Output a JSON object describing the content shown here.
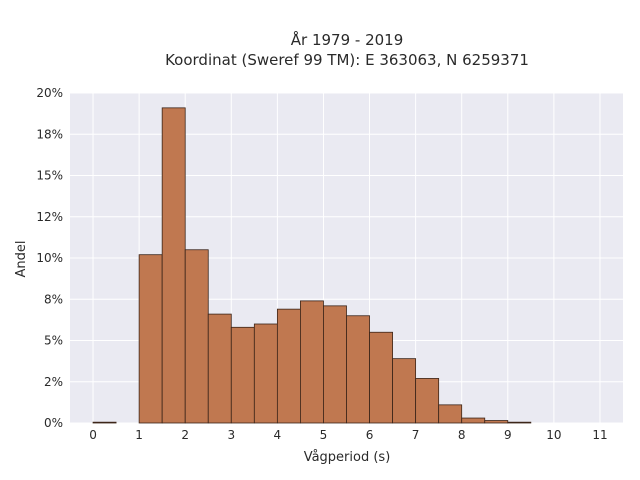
{
  "chart_data": {
    "type": "bar",
    "title": "År 1979 - 2019",
    "subtitle": "Koordinat (Sweref 99 TM): E 363063, N 6259371",
    "xlabel": "Vågperiod (s)",
    "ylabel": "Andel",
    "bin_width": 0.5,
    "bins": [
      {
        "x0": 0.0,
        "value": 0.05
      },
      {
        "x0": 0.5,
        "value": 0.0
      },
      {
        "x0": 1.0,
        "value": 10.2
      },
      {
        "x0": 1.5,
        "value": 19.1
      },
      {
        "x0": 2.0,
        "value": 10.5
      },
      {
        "x0": 2.5,
        "value": 6.6
      },
      {
        "x0": 3.0,
        "value": 5.8
      },
      {
        "x0": 3.5,
        "value": 6.0
      },
      {
        "x0": 4.0,
        "value": 6.9
      },
      {
        "x0": 4.5,
        "value": 7.4
      },
      {
        "x0": 5.0,
        "value": 7.1
      },
      {
        "x0": 5.5,
        "value": 6.5
      },
      {
        "x0": 6.0,
        "value": 5.5
      },
      {
        "x0": 6.5,
        "value": 3.9
      },
      {
        "x0": 7.0,
        "value": 2.7
      },
      {
        "x0": 7.5,
        "value": 1.1
      },
      {
        "x0": 8.0,
        "value": 0.3
      },
      {
        "x0": 8.5,
        "value": 0.15
      },
      {
        "x0": 9.0,
        "value": 0.05
      }
    ],
    "xlim": [
      -0.5,
      11.5
    ],
    "ylim": [
      0,
      20
    ],
    "x_ticks": [
      0,
      1,
      2,
      3,
      4,
      5,
      6,
      7,
      8,
      9,
      10,
      11
    ],
    "y_ticks": [
      0,
      2.5,
      5,
      7.5,
      10,
      12.5,
      15,
      17.5,
      20
    ],
    "y_tick_labels": [
      "0%",
      "2%",
      "5%",
      "8%",
      "10%",
      "12%",
      "15%",
      "18%",
      "20%"
    ],
    "grid": true,
    "colors": {
      "bar_fill": "#c07850",
      "bar_edge": "#3a2418",
      "plot_bg": "#eaeaf2",
      "grid": "#ffffff"
    }
  }
}
